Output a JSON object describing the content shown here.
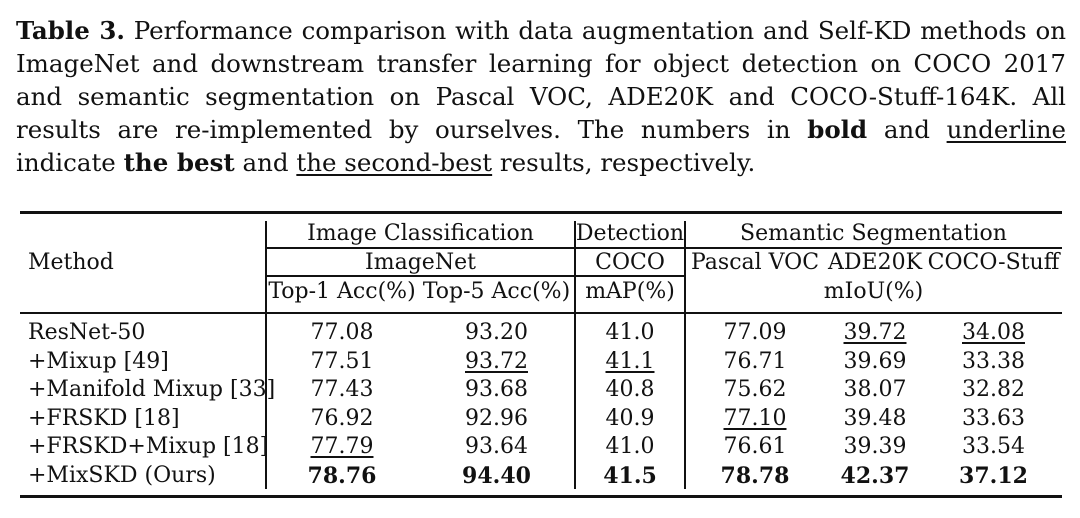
{
  "caption": {
    "label": "Table 3.",
    "text1": " Performance comparison with data augmentation and Self-KD methods on ImageNet and downstream transfer learning for object detection on COCO 2017 and semantic segmentation on Pascal VOC, ADE20K and COCO-Stuff-164K. All results are re-implemented by ourselves. The numbers in ",
    "bold_word": "bold",
    "text2": " and ",
    "underline_word": "underline",
    "text3": " indicate ",
    "best": "the best",
    "text4": " and ",
    "second_best": "the second-best",
    "text5": " results, respectively."
  },
  "header": {
    "method": "Method",
    "group_cls": "Image Classification",
    "group_det": "Detection",
    "group_seg": "Semantic Segmentation",
    "dataset_cls": "ImageNet",
    "dataset_det": "COCO",
    "seg_voc": "Pascal VOC",
    "seg_ade": "ADE20K",
    "seg_stuff": "COCO-Stuff",
    "metric_top1": "Top-1 Acc(%)",
    "metric_top5": "Top-5 Acc(%)",
    "metric_map": "mAP(%)",
    "metric_miou": "mIoU(%)"
  },
  "rows": [
    {
      "method": "ResNet-50",
      "top1": "77.08",
      "top5": "93.20",
      "map": "41.0",
      "voc": "77.09",
      "ade": "39.72",
      "stuff": "34.08"
    },
    {
      "method": "+Mixup [49]",
      "top1": "77.51",
      "top5": "93.72",
      "map": "41.1",
      "voc": "76.71",
      "ade": "39.69",
      "stuff": "33.38"
    },
    {
      "method": "+Manifold Mixup [33]",
      "top1": "77.43",
      "top5": "93.68",
      "map": "40.8",
      "voc": "75.62",
      "ade": "38.07",
      "stuff": "32.82"
    },
    {
      "method": "+FRSKD [18]",
      "top1": "76.92",
      "top5": "92.96",
      "map": "40.9",
      "voc": "77.10",
      "ade": "39.48",
      "stuff": "33.63"
    },
    {
      "method": "+FRSKD+Mixup [18]",
      "top1": "77.79",
      "top5": "93.64",
      "map": "41.0",
      "voc": "76.61",
      "ade": "39.39",
      "stuff": "33.54"
    },
    {
      "method": "+MixSKD (Ours)",
      "top1": "78.76",
      "top5": "94.40",
      "map": "41.5",
      "voc": "78.78",
      "ade": "42.37",
      "stuff": "37.12"
    }
  ]
}
